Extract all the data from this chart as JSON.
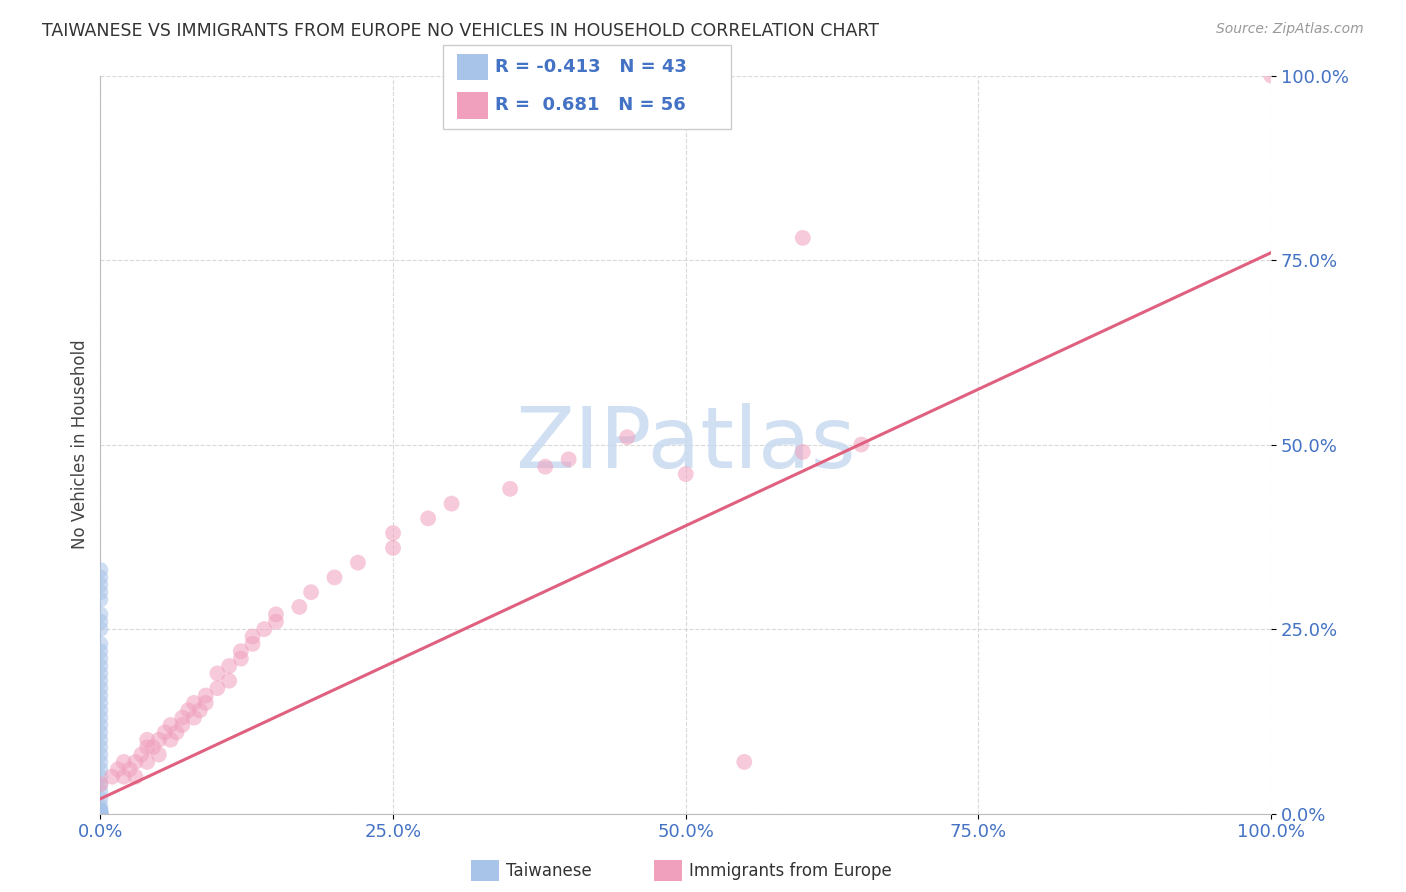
{
  "title": "TAIWANESE VS IMMIGRANTS FROM EUROPE NO VEHICLES IN HOUSEHOLD CORRELATION CHART",
  "source": "Source: ZipAtlas.com",
  "ylabel": "No Vehicles in Household",
  "background_color": "#ffffff",
  "grid_color": "#d0d0d0",
  "taiwanese_color": "#a8c4e8",
  "europe_color": "#f0a0bc",
  "europe_line_color": "#e06080",
  "axis_label_color": "#4472c4",
  "legend_text_color": "#4472c4",
  "watermark_color": "#c8daf0",
  "watermark_text": "ZIPatlas",
  "R_taiwanese": -0.413,
  "N_taiwanese": 43,
  "R_europe": 0.681,
  "N_europe": 56,
  "xlim": [
    0.0,
    1.0
  ],
  "ylim": [
    0.0,
    1.0
  ],
  "xticks": [
    0.0,
    0.25,
    0.5,
    0.75,
    1.0
  ],
  "yticks": [
    0.0,
    0.25,
    0.5,
    0.75,
    1.0
  ],
  "xtick_labels": [
    "0.0%",
    "25.0%",
    "50.0%",
    "75.0%",
    "100.0%"
  ],
  "ytick_labels": [
    "0.0%",
    "25.0%",
    "50.0%",
    "75.0%",
    "100.0%"
  ],
  "europe_line_x0": 0.0,
  "europe_line_y0": 0.02,
  "europe_line_x1": 1.0,
  "europe_line_y1": 0.76,
  "tw_x": [
    0.0,
    0.0,
    0.0,
    0.0,
    0.0,
    0.0,
    0.0,
    0.0,
    0.0,
    0.0,
    0.0,
    0.0,
    0.0,
    0.0,
    0.0,
    0.0,
    0.0,
    0.0,
    0.0,
    0.0,
    0.0,
    0.0,
    0.0,
    0.0,
    0.0,
    0.0,
    0.0,
    0.0,
    0.0,
    0.0,
    0.0,
    0.0,
    0.0,
    0.0,
    0.0,
    0.0,
    0.0,
    0.0,
    0.0,
    0.0,
    0.0,
    0.0,
    0.0
  ],
  "tw_y": [
    0.33,
    0.32,
    0.31,
    0.3,
    0.29,
    0.27,
    0.26,
    0.25,
    0.23,
    0.22,
    0.21,
    0.2,
    0.19,
    0.18,
    0.17,
    0.16,
    0.15,
    0.14,
    0.13,
    0.12,
    0.11,
    0.1,
    0.09,
    0.08,
    0.07,
    0.06,
    0.05,
    0.04,
    0.03,
    0.02,
    0.01,
    0.005,
    0.004,
    0.003,
    0.002,
    0.001,
    0.0,
    0.0,
    0.0,
    0.0,
    0.0,
    0.0,
    0.0
  ],
  "eu_x": [
    0.0,
    0.01,
    0.015,
    0.02,
    0.02,
    0.025,
    0.03,
    0.03,
    0.035,
    0.04,
    0.04,
    0.04,
    0.045,
    0.05,
    0.05,
    0.055,
    0.06,
    0.06,
    0.065,
    0.07,
    0.07,
    0.075,
    0.08,
    0.08,
    0.085,
    0.09,
    0.09,
    0.1,
    0.1,
    0.11,
    0.11,
    0.12,
    0.12,
    0.13,
    0.13,
    0.14,
    0.15,
    0.15,
    0.17,
    0.18,
    0.2,
    0.22,
    0.25,
    0.25,
    0.28,
    0.3,
    0.35,
    0.38,
    0.4,
    0.45,
    0.5,
    0.55,
    0.6,
    0.65,
    0.6,
    1.0
  ],
  "eu_y": [
    0.04,
    0.05,
    0.06,
    0.05,
    0.07,
    0.06,
    0.05,
    0.07,
    0.08,
    0.07,
    0.09,
    0.1,
    0.09,
    0.08,
    0.1,
    0.11,
    0.1,
    0.12,
    0.11,
    0.13,
    0.12,
    0.14,
    0.13,
    0.15,
    0.14,
    0.15,
    0.16,
    0.17,
    0.19,
    0.18,
    0.2,
    0.21,
    0.22,
    0.23,
    0.24,
    0.25,
    0.26,
    0.27,
    0.28,
    0.3,
    0.32,
    0.34,
    0.36,
    0.38,
    0.4,
    0.42,
    0.44,
    0.47,
    0.48,
    0.51,
    0.46,
    0.07,
    0.49,
    0.5,
    0.78,
    1.0
  ]
}
